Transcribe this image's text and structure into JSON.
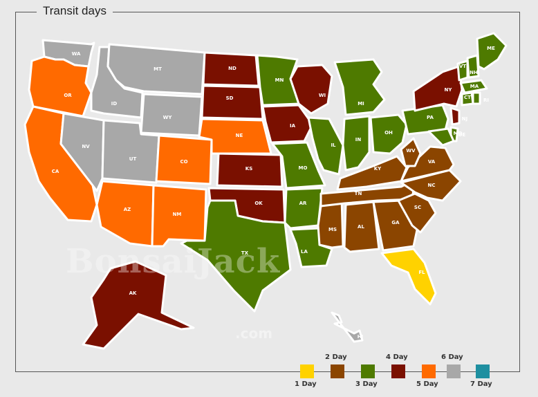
{
  "title": "Transit days",
  "colors": {
    "day1": "#ffd200",
    "day2": "#8b4500",
    "day3": "#4e7a00",
    "day4": "#7a1000",
    "day5": "#ff6a00",
    "day6": "#a8a8a8",
    "day7": "#1e8fa0",
    "background": "#e9e9e9"
  },
  "legend": [
    {
      "label": "1 Day",
      "color": "#ffd200"
    },
    {
      "label": "2 Day",
      "color": "#8b4500"
    },
    {
      "label": "3 Day",
      "color": "#4e7a00"
    },
    {
      "label": "4 Day",
      "color": "#7a1000"
    },
    {
      "label": "5 Day",
      "color": "#ff6a00"
    },
    {
      "label": "6 Day",
      "color": "#a8a8a8"
    },
    {
      "label": "7 Day",
      "color": "#1e8fa0"
    }
  ],
  "states": {
    "WA": 6,
    "OR": 5,
    "CA": 5,
    "ID": 6,
    "NV": 6,
    "MT": 6,
    "WY": 6,
    "UT": 6,
    "CO": 5,
    "AZ": 5,
    "NM": 5,
    "ND": 4,
    "SD": 4,
    "NE": 5,
    "KS": 4,
    "OK": 4,
    "TX": 3,
    "MN": 3,
    "IA": 4,
    "MO": 3,
    "AR": 3,
    "LA": 3,
    "WI": 4,
    "IL": 3,
    "MS": 2,
    "AL": 2,
    "TN": 2,
    "KY": 2,
    "IN": 3,
    "MI": 3,
    "OH": 3,
    "GA": 2,
    "FL": 1,
    "SC": 2,
    "NC": 2,
    "VA": 2,
    "WV": 2,
    "PA": 3,
    "NY": 4,
    "VT": 3,
    "NH": 3,
    "ME": 3,
    "MA": 3,
    "CT": 3,
    "RI": 3,
    "NJ": 4,
    "DE": 3,
    "MD": 3,
    "AK": 4,
    "HI": 6
  },
  "watermark": {
    "brand": "BonsaiJack",
    "domain": ".com"
  }
}
